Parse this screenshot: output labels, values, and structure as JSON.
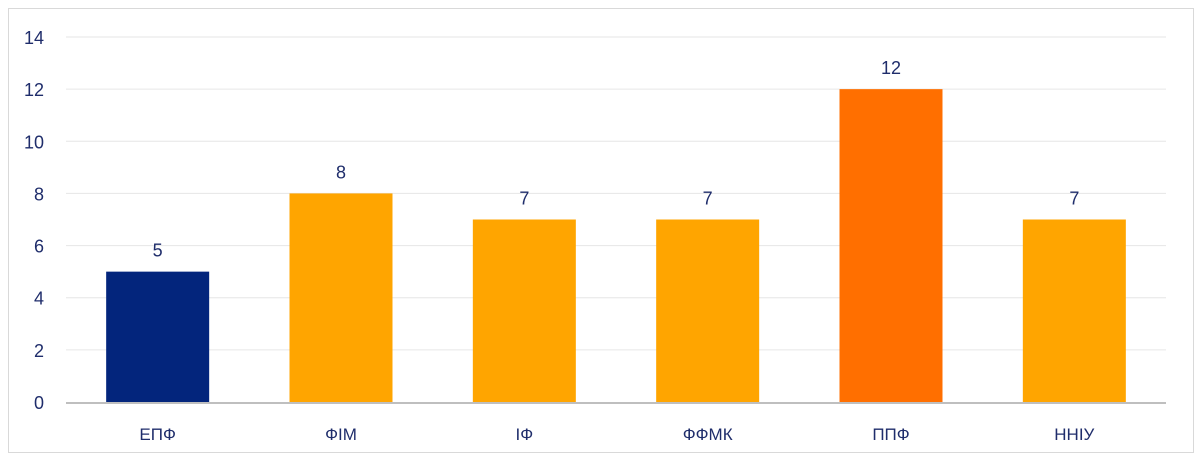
{
  "chart_data": {
    "type": "bar",
    "title": "",
    "xlabel": "",
    "ylabel": "",
    "categories": [
      "ЕПФ",
      "ФІМ",
      "ІФ",
      "ФФМК",
      "ППФ",
      "ННІУ"
    ],
    "values": [
      5,
      8,
      7,
      7,
      12,
      7
    ],
    "bar_colors": [
      "#03257c",
      "#ffa500",
      "#ffa500",
      "#ffa500",
      "#ff6f00",
      "#ffa500"
    ],
    "ylim": [
      0,
      14
    ],
    "yticks": [
      0,
      2,
      4,
      6,
      8,
      10,
      12,
      14
    ],
    "grid": true,
    "data_labels": true,
    "legend": "none"
  }
}
